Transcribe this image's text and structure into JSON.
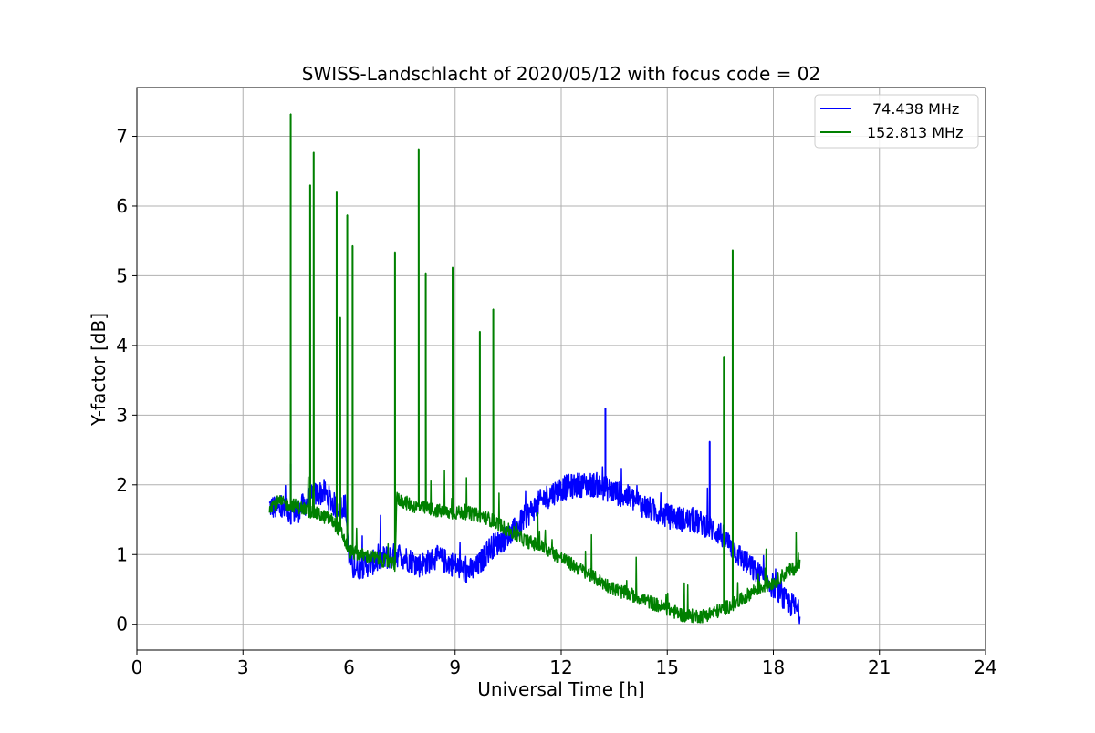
{
  "chart_data": {
    "type": "line",
    "title": "SWISS-Landschlacht of 2020/05/12 with focus code = 02",
    "xlabel": "Universal Time [h]",
    "ylabel": "Y-factor [dB]",
    "xlim": [
      0,
      24
    ],
    "ylim": [
      -0.37,
      7.7
    ],
    "xticks": [
      0,
      3,
      6,
      9,
      12,
      15,
      18,
      21,
      24
    ],
    "yticks": [
      0,
      1,
      2,
      3,
      4,
      5,
      6,
      7
    ],
    "grid": true,
    "legend_position": "top-right",
    "series": [
      {
        "name": "74.438 MHz",
        "color": "#0000ff",
        "x": [
          3.75,
          4.0,
          4.5,
          5.0,
          5.3,
          5.6,
          5.9,
          6.0,
          6.1,
          6.5,
          7.0,
          7.4,
          8.0,
          8.5,
          9.0,
          9.3,
          9.6,
          9.8,
          10.0,
          10.3,
          10.6,
          11.0,
          11.5,
          12.0,
          12.5,
          13.0,
          13.5,
          14.0,
          14.5,
          15.0,
          15.5,
          16.0,
          16.5,
          17.0,
          17.5,
          18.0,
          18.3,
          18.6,
          18.75
        ],
        "y": [
          1.7,
          1.65,
          1.6,
          1.85,
          1.9,
          1.7,
          1.7,
          1.0,
          0.8,
          0.85,
          0.95,
          1.0,
          0.85,
          0.95,
          0.85,
          0.75,
          0.8,
          0.95,
          1.1,
          1.2,
          1.3,
          1.55,
          1.8,
          1.95,
          2.0,
          2.0,
          1.9,
          1.8,
          1.65,
          1.55,
          1.5,
          1.45,
          1.3,
          1.0,
          0.75,
          0.55,
          0.35,
          0.25,
          0.15
        ],
        "spikes": [
          {
            "x": 4.35,
            "y": 2.3
          },
          {
            "x": 13.25,
            "y": 3.1
          },
          {
            "x": 16.2,
            "y": 2.62
          }
        ]
      },
      {
        "name": "152.813 MHz",
        "color": "#008000",
        "x": [
          3.75,
          4.0,
          4.5,
          5.0,
          5.5,
          5.8,
          6.0,
          6.3,
          6.8,
          7.3,
          7.35,
          7.8,
          8.3,
          8.8,
          9.3,
          9.8,
          10.2,
          10.5,
          11.0,
          11.5,
          12.0,
          12.5,
          13.0,
          13.5,
          14.0,
          14.5,
          15.0,
          15.5,
          16.0,
          16.5,
          17.0,
          17.5,
          18.0,
          18.4,
          18.75
        ],
        "y": [
          1.7,
          1.75,
          1.7,
          1.6,
          1.5,
          1.3,
          1.05,
          1.0,
          0.95,
          0.85,
          1.8,
          1.7,
          1.65,
          1.6,
          1.6,
          1.55,
          1.45,
          1.35,
          1.2,
          1.1,
          0.95,
          0.8,
          0.65,
          0.5,
          0.42,
          0.32,
          0.22,
          0.12,
          0.12,
          0.2,
          0.32,
          0.5,
          0.6,
          0.75,
          0.85
        ],
        "spikes": [
          {
            "x": 4.35,
            "y": 7.32
          },
          {
            "x": 4.9,
            "y": 6.3
          },
          {
            "x": 5.0,
            "y": 6.77
          },
          {
            "x": 5.65,
            "y": 6.2
          },
          {
            "x": 5.75,
            "y": 4.4
          },
          {
            "x": 5.95,
            "y": 5.87
          },
          {
            "x": 6.1,
            "y": 5.43
          },
          {
            "x": 7.3,
            "y": 5.34
          },
          {
            "x": 7.97,
            "y": 6.82
          },
          {
            "x": 8.17,
            "y": 5.04
          },
          {
            "x": 8.93,
            "y": 5.12
          },
          {
            "x": 9.7,
            "y": 4.2
          },
          {
            "x": 10.08,
            "y": 4.52
          },
          {
            "x": 16.6,
            "y": 3.83
          },
          {
            "x": 16.85,
            "y": 5.37
          }
        ]
      }
    ]
  }
}
